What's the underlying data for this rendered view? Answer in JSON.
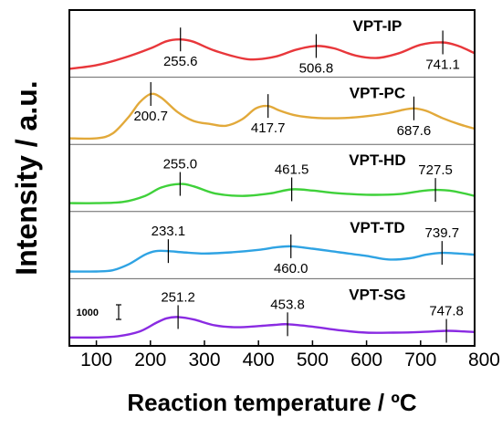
{
  "chart_data": {
    "type": "line",
    "xlabel": "Reaction temperature / ºC",
    "ylabel": "Intensity / a.u.",
    "xlim": [
      50,
      800
    ],
    "x_ticks": [
      100,
      200,
      300,
      400,
      500,
      600,
      700,
      800
    ],
    "x_tick_labels": [
      "100",
      "200",
      "300",
      "400",
      "500",
      "600",
      "700",
      "800"
    ],
    "y_ticks": "none",
    "grid": false,
    "legend": "none",
    "scale_bar_label": "1000",
    "series": [
      {
        "name": "VPT-IP",
        "color": "#e8373b",
        "ylim": [
          0,
          100
        ],
        "x": [
          50,
          100,
          150,
          200,
          230,
          255.6,
          280,
          320,
          380,
          430,
          470,
          506.8,
          540,
          580,
          620,
          660,
          700,
          741.1,
          770,
          800
        ],
        "y": [
          8,
          14,
          26,
          42,
          54,
          57,
          53,
          38,
          24,
          28,
          40,
          46,
          42,
          30,
          26,
          34,
          48,
          52,
          46,
          34
        ],
        "peaks": [
          {
            "x": 255.6,
            "label": "255.6"
          },
          {
            "x": 506.8,
            "label": "506.8"
          },
          {
            "x": 741.1,
            "label": "741.1"
          }
        ]
      },
      {
        "name": "VPT-PC",
        "color": "#e2a93a",
        "ylim": [
          0,
          100
        ],
        "x": [
          50,
          100,
          130,
          160,
          180,
          200.7,
          220,
          250,
          280,
          310,
          340,
          370,
          395,
          417.7,
          440,
          470,
          510,
          560,
          600,
          640,
          670,
          687.6,
          710,
          740,
          770,
          800
        ],
        "y": [
          4,
          4,
          12,
          40,
          64,
          78,
          72,
          48,
          33,
          28,
          25,
          36,
          54,
          58,
          50,
          42,
          38,
          38,
          41,
          46,
          52,
          54,
          50,
          38,
          28,
          20
        ],
        "peaks": [
          {
            "x": 200.7,
            "label": "200.7"
          },
          {
            "x": 417.7,
            "label": "417.7"
          },
          {
            "x": 687.6,
            "label": "687.6"
          }
        ]
      },
      {
        "name": "VPT-HD",
        "color": "#3fd13a",
        "ylim": [
          0,
          100
        ],
        "x": [
          50,
          100,
          150,
          190,
          220,
          255.0,
          280,
          320,
          370,
          420,
          461.5,
          500,
          540,
          600,
          660,
          700,
          727.5,
          760,
          800
        ],
        "y": [
          8,
          8,
          10,
          20,
          34,
          40,
          36,
          24,
          20,
          24,
          31,
          29,
          25,
          22,
          23,
          28,
          30,
          28,
          20
        ],
        "peaks": [
          {
            "x": 255.0,
            "label": "255.0"
          },
          {
            "x": 461.5,
            "label": "461.5"
          },
          {
            "x": 727.5,
            "label": "727.5"
          }
        ]
      },
      {
        "name": "VPT-TD",
        "color": "#2fa3e3",
        "ylim": [
          0,
          100
        ],
        "x": [
          50,
          100,
          130,
          160,
          190,
          210,
          233.1,
          260,
          300,
          350,
          400,
          430,
          460.0,
          500,
          550,
          600,
          640,
          680,
          710,
          739.7,
          770,
          800
        ],
        "y": [
          6,
          6,
          8,
          18,
          34,
          40,
          40,
          38,
          36,
          38,
          42,
          46,
          48,
          44,
          38,
          32,
          26,
          28,
          34,
          37,
          36,
          34
        ],
        "peaks": [
          {
            "x": 233.1,
            "label": "233.1"
          },
          {
            "x": 460.0,
            "label": "460.0"
          },
          {
            "x": 739.7,
            "label": "739.7"
          }
        ]
      },
      {
        "name": "VPT-SG",
        "color": "#8a2be2",
        "ylim": [
          0,
          100
        ],
        "x": [
          50,
          100,
          140,
          180,
          210,
          230,
          251.2,
          280,
          320,
          360,
          400,
          430,
          453.8,
          500,
          550,
          600,
          650,
          700,
          747.8,
          780,
          800
        ],
        "y": [
          8,
          8,
          10,
          18,
          32,
          40,
          42,
          38,
          28,
          25,
          27,
          29,
          30,
          26,
          20,
          16,
          16,
          17,
          19,
          18,
          17
        ],
        "peaks": [
          {
            "x": 251.2,
            "label": "251.2"
          },
          {
            "x": 453.8,
            "label": "453.8"
          },
          {
            "x": 747.8,
            "label": "747.8"
          }
        ]
      }
    ]
  }
}
